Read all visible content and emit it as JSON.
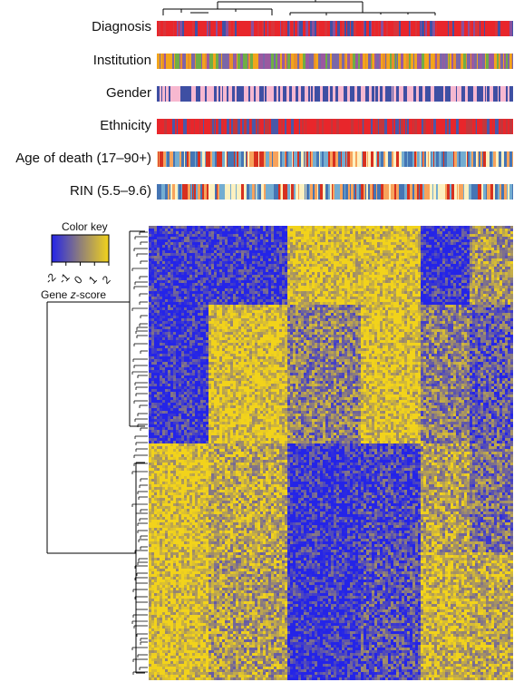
{
  "chart_data": {
    "type": "heatmap",
    "annotation_tracks": [
      {
        "label": "Diagnosis",
        "colors": [
          "#e8262b",
          "#3f51a6",
          "#8a4f9c",
          "#d9343a"
        ]
      },
      {
        "label": "Institution",
        "colors": [
          "#f2a51c",
          "#7a67a8",
          "#e88f2a",
          "#9b59a0",
          "#6fae45"
        ]
      },
      {
        "label": "Gender",
        "colors": [
          "#3e4fa3",
          "#f7b8d0"
        ]
      },
      {
        "label": "Ethnicity",
        "colors": [
          "#e8262b",
          "#c2373c",
          "#4a58a8"
        ]
      },
      {
        "label": "Age of death (17–90+)",
        "colors": [
          "#fdf1c0",
          "#f7a35c",
          "#d7301f",
          "#74add1",
          "#4575b4"
        ]
      },
      {
        "label": "RIN (5.5–9.6)",
        "colors": [
          "#fdf1c0",
          "#f7a35c",
          "#d7301f",
          "#74add1",
          "#4575b4"
        ]
      }
    ],
    "color_key": {
      "title": "Color key",
      "xlabel_prefix": "Gene ",
      "xlabel_italic": "z",
      "xlabel_suffix": "-score",
      "ticks": [
        "-2",
        "-1",
        "0",
        "1",
        "2"
      ],
      "range": [
        -2,
        2
      ],
      "colors": {
        "low": "#2424e8",
        "mid": "#8f7f7a",
        "high": "#f2d31b"
      }
    },
    "heatmap_blocks": {
      "column_groups": 6,
      "row_groups": 4,
      "pattern": [
        [
          -1,
          -1,
          1,
          1,
          -1,
          0.3
        ],
        [
          -1,
          1,
          0,
          1,
          0,
          -0.5
        ],
        [
          1,
          0.6,
          -1,
          -0.8,
          0.5,
          -0.2
        ],
        [
          1,
          0.4,
          -1,
          -0.6,
          0.8,
          0.6
        ]
      ]
    }
  }
}
